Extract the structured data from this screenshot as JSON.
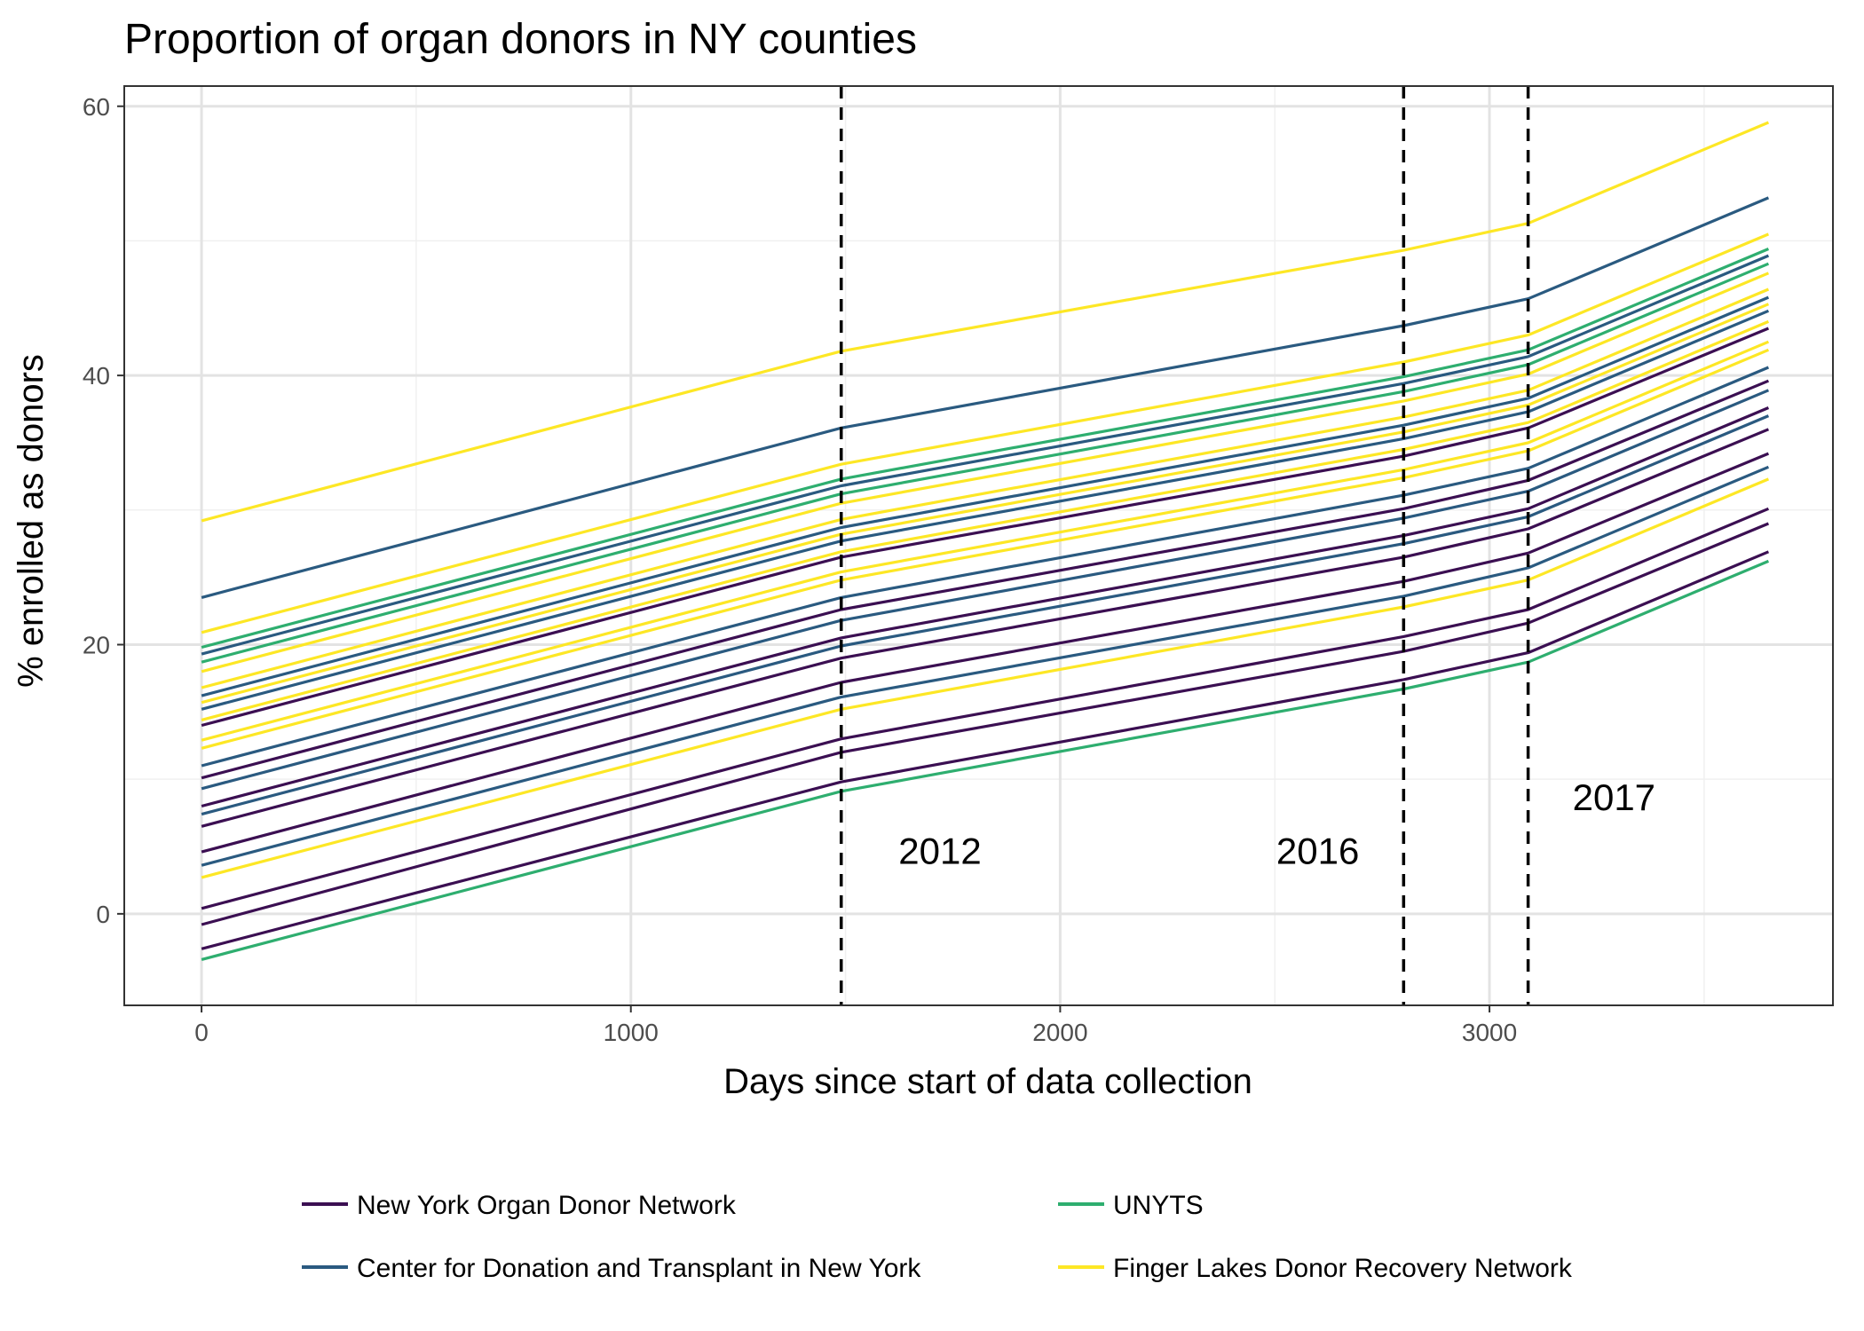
{
  "chart_data": {
    "type": "line",
    "title": "Proportion of organ donors in NY counties",
    "xlabel": "Days since start of data collection",
    "ylabel": "% enrolled as donors",
    "xlim": [
      -180,
      3800
    ],
    "ylim": [
      -6.8,
      61.5
    ],
    "x_ticks": [
      0,
      1000,
      2000,
      3000
    ],
    "y_ticks": [
      0,
      20,
      40,
      60
    ],
    "grid": true,
    "legend_position": "bottom",
    "x": [
      0,
      1490,
      2800,
      3090,
      3650
    ],
    "groups": [
      {
        "name": "New York Organ Donor Network",
        "color": "#3b0f52"
      },
      {
        "name": "Center for Donation and Transplant in New York",
        "color": "#2a5a80"
      },
      {
        "name": "UNYTS",
        "color": "#2eae6f"
      },
      {
        "name": "Finger Lakes Donor Recovery Network",
        "color": "#fde725"
      }
    ],
    "series": [
      {
        "group": 0,
        "values": [
          -0.8,
          12.0,
          19.5,
          21.6,
          29.0
        ]
      },
      {
        "group": 0,
        "values": [
          0.4,
          13.0,
          20.6,
          22.6,
          30.1
        ]
      },
      {
        "group": 0,
        "values": [
          4.6,
          17.2,
          24.7,
          26.8,
          34.2
        ]
      },
      {
        "group": 0,
        "values": [
          6.5,
          19.0,
          26.5,
          28.6,
          36.0
        ]
      },
      {
        "group": 0,
        "values": [
          8.0,
          20.5,
          28.1,
          30.1,
          37.6
        ]
      },
      {
        "group": 0,
        "values": [
          10.1,
          22.6,
          30.1,
          32.2,
          39.6
        ]
      },
      {
        "group": 0,
        "values": [
          14.0,
          26.5,
          34.0,
          36.1,
          43.5
        ]
      },
      {
        "group": 0,
        "values": [
          -2.6,
          9.8,
          17.4,
          19.4,
          26.9
        ]
      },
      {
        "group": 1,
        "values": [
          3.6,
          16.1,
          23.6,
          25.7,
          33.2
        ]
      },
      {
        "group": 1,
        "values": [
          9.3,
          21.8,
          29.4,
          31.4,
          38.9
        ]
      },
      {
        "group": 1,
        "values": [
          7.4,
          19.9,
          27.5,
          29.5,
          37.0
        ]
      },
      {
        "group": 1,
        "values": [
          11.0,
          23.5,
          31.1,
          33.1,
          40.6
        ]
      },
      {
        "group": 1,
        "values": [
          15.2,
          27.7,
          35.3,
          37.3,
          44.8
        ]
      },
      {
        "group": 1,
        "values": [
          16.2,
          28.7,
          36.3,
          38.3,
          45.8
        ]
      },
      {
        "group": 1,
        "values": [
          19.3,
          31.8,
          39.4,
          41.4,
          48.9
        ]
      },
      {
        "group": 1,
        "values": [
          23.5,
          36.1,
          43.7,
          45.7,
          53.2
        ]
      },
      {
        "group": 2,
        "values": [
          -3.4,
          9.1,
          16.7,
          18.7,
          26.2
        ]
      },
      {
        "group": 2,
        "values": [
          18.7,
          31.2,
          38.8,
          40.8,
          48.3
        ]
      },
      {
        "group": 2,
        "values": [
          19.8,
          32.3,
          39.9,
          41.9,
          49.4
        ]
      },
      {
        "group": 3,
        "values": [
          2.7,
          15.2,
          22.8,
          24.8,
          32.3
        ]
      },
      {
        "group": 3,
        "values": [
          12.3,
          24.8,
          32.4,
          34.4,
          41.9
        ]
      },
      {
        "group": 3,
        "values": [
          12.9,
          25.4,
          33.0,
          35.0,
          42.5
        ]
      },
      {
        "group": 3,
        "values": [
          14.4,
          26.9,
          34.5,
          36.5,
          44.0
        ]
      },
      {
        "group": 3,
        "values": [
          15.7,
          28.2,
          35.8,
          37.8,
          45.3
        ]
      },
      {
        "group": 3,
        "values": [
          16.8,
          29.3,
          36.9,
          38.9,
          46.4
        ]
      },
      {
        "group": 3,
        "values": [
          18.0,
          30.5,
          38.1,
          40.1,
          47.6
        ]
      },
      {
        "group": 3,
        "values": [
          20.9,
          33.4,
          41.0,
          43.0,
          50.5
        ]
      },
      {
        "group": 3,
        "values": [
          29.2,
          41.8,
          49.3,
          51.3,
          58.8
        ]
      }
    ],
    "vlines": [
      {
        "x": 1490,
        "label": "2012",
        "label_x": 1720,
        "label_y": 4.7
      },
      {
        "x": 2800,
        "label": "2016",
        "label_x": 2600,
        "label_y": 4.7
      },
      {
        "x": 3090,
        "label": "2017",
        "label_x": 3290,
        "label_y": 8.7
      }
    ]
  }
}
